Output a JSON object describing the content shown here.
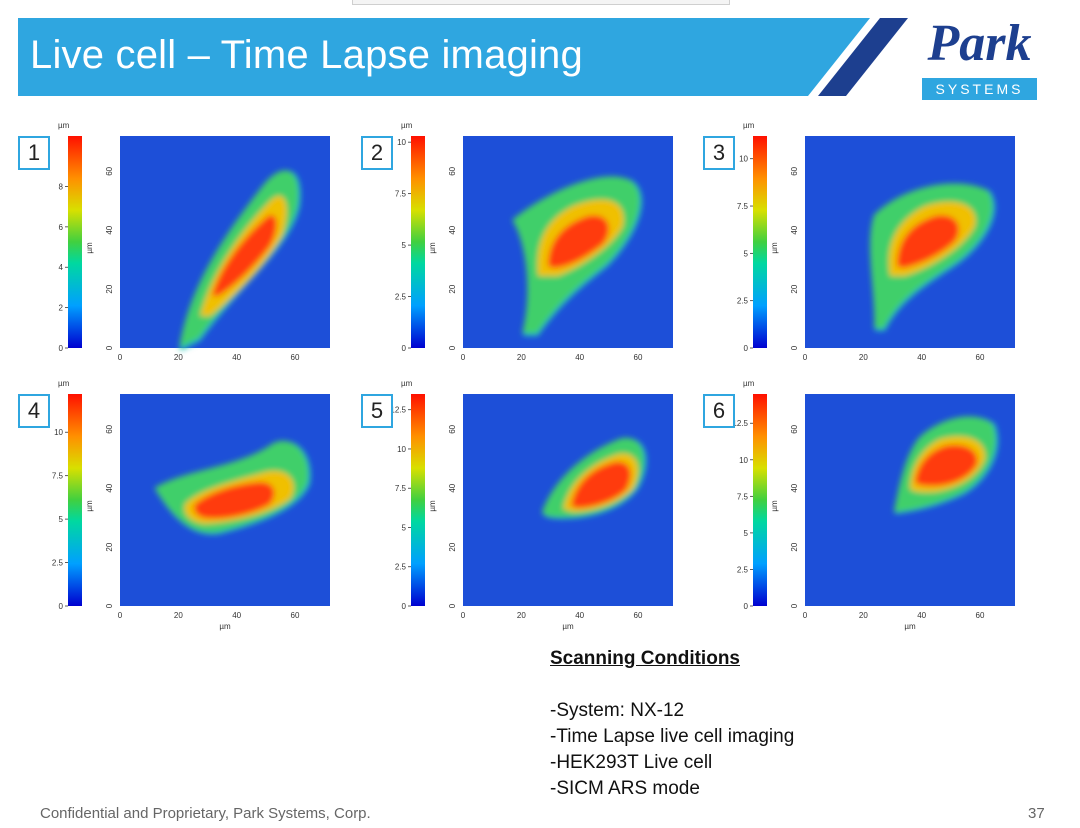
{
  "slide": {
    "title": "Live cell – Time Lapse imaging",
    "logo_main": "Park",
    "logo_sub": "SYSTEMS",
    "footer": "Confidential and Proprietary, Park Systems, Corp.",
    "page_number": "37",
    "colors": {
      "banner": "#2fa6e0",
      "logo_navy": "#1d3f8f",
      "stripe": "#1d3f8f"
    }
  },
  "axis_common": {
    "unit": "µm",
    "y_label": "µm",
    "x_label": "µm",
    "lateral_ticks": [
      "0",
      "20",
      "40",
      "60"
    ]
  },
  "panels": [
    {
      "number": "1",
      "scale_ticks": [
        "0",
        "2",
        "4",
        "6",
        "8"
      ],
      "scale_max": 10.5,
      "show_x_label": false
    },
    {
      "number": "2",
      "scale_ticks": [
        "0",
        "2.5",
        "5",
        "7.5",
        "10"
      ],
      "scale_max": 10.3,
      "show_x_label": false
    },
    {
      "number": "3",
      "scale_ticks": [
        "0",
        "2.5",
        "5",
        "7.5",
        "10"
      ],
      "scale_max": 11.2,
      "show_x_label": false
    },
    {
      "number": "4",
      "scale_ticks": [
        "0",
        "2.5",
        "5",
        "7.5",
        "10"
      ],
      "scale_max": 12.2,
      "show_x_label": true
    },
    {
      "number": "5",
      "scale_ticks": [
        "0",
        "2.5",
        "5",
        "7.5",
        "10",
        "12.5"
      ],
      "scale_max": 13.5,
      "show_x_label": true
    },
    {
      "number": "6",
      "scale_ticks": [
        "0",
        "2.5",
        "5",
        "7.5",
        "10",
        "12.5"
      ],
      "scale_max": 14.5,
      "show_x_label": true
    }
  ],
  "conditions": {
    "heading": "Scanning Conditions",
    "items": [
      "-System: NX-12",
      "-Time Lapse live cell imaging",
      "-HEK293T Live cell",
      "-SICM ARS mode"
    ]
  }
}
